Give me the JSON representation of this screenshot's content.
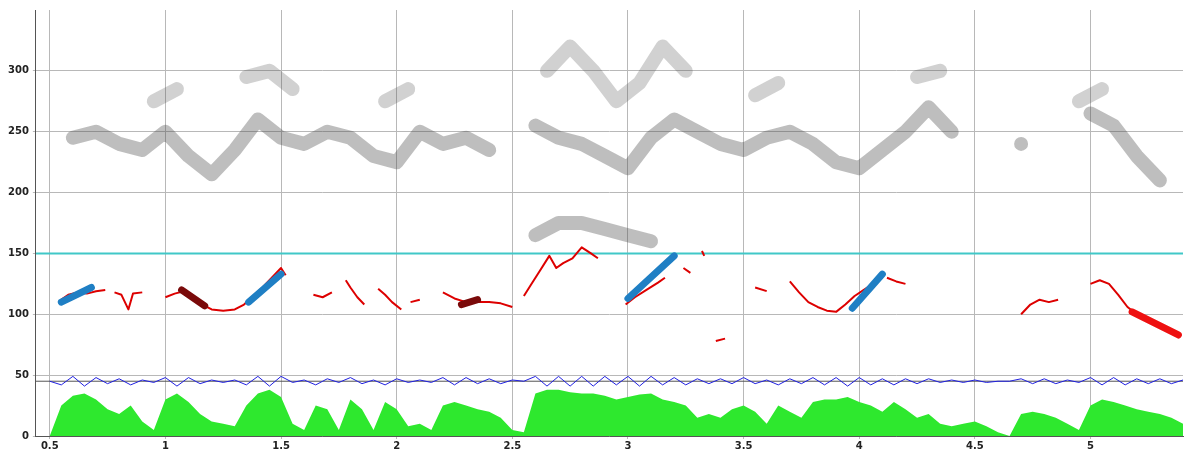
{
  "chart_data": {
    "type": "line",
    "xlim": [
      0.44,
      5.4
    ],
    "ylim": [
      0,
      350
    ],
    "xticks": [
      0.5,
      1,
      1.5,
      2,
      2.5,
      3,
      3.5,
      4,
      4.5,
      5
    ],
    "yticks": [
      0,
      50,
      100,
      150,
      200,
      250,
      300
    ],
    "grid": true,
    "series": [
      {
        "type": "segment",
        "color": "#1f7fc4",
        "line_style": "thick",
        "x": [
          0.55,
          0.68
        ],
        "values": [
          110,
          122
        ]
      },
      {
        "type": "segment",
        "color": "#1f7fc4",
        "line_style": "thick",
        "x": [
          1.36,
          1.5
        ],
        "values": [
          110,
          133
        ]
      },
      {
        "type": "segment",
        "color": "#1f7fc4",
        "line_style": "thick",
        "x": [
          3.0,
          3.2
        ],
        "values": [
          113,
          148
        ]
      },
      {
        "type": "segment",
        "color": "#1f7fc4",
        "line_style": "thick",
        "x": [
          3.97,
          4.1
        ],
        "values": [
          105,
          133
        ]
      },
      {
        "type": "segment",
        "color": "#7a0a0a",
        "line_style": "thick",
        "x": [
          1.07,
          1.17
        ],
        "values": [
          120,
          107
        ]
      },
      {
        "type": "segment",
        "color": "#7a0a0a",
        "line_style": "thick",
        "x": [
          2.28,
          2.35
        ],
        "values": [
          108,
          112
        ]
      },
      {
        "type": "segment",
        "color": "#ee1111",
        "line_style": "thick",
        "x": [
          5.18,
          5.38
        ],
        "values": [
          102,
          83
        ]
      },
      {
        "type": "line",
        "color": "#dd0000",
        "line_style": "thin",
        "x": [
          0.55,
          0.58,
          0.62,
          0.66,
          0.7,
          0.74,
          0.76,
          0.78,
          0.81,
          0.84,
          0.86,
          0.9,
          0.92,
          1.0,
          1.04,
          1.08,
          1.12,
          1.16,
          1.2,
          1.25,
          1.3,
          1.34,
          1.38,
          1.42,
          1.46,
          1.5,
          1.52,
          1.54,
          1.64,
          1.68,
          1.72,
          1.74,
          1.78,
          1.8,
          1.83,
          1.86,
          1.87,
          1.92,
          1.95,
          1.98,
          2.02,
          2.04,
          2.06,
          2.1,
          2.12,
          2.2,
          2.25,
          2.3,
          2.35,
          2.4,
          2.45,
          2.5,
          2.52,
          2.55,
          2.58,
          2.62,
          2.66,
          2.69,
          2.72,
          2.76,
          2.8,
          2.84,
          2.87,
          2.88,
          2.99,
          3.03,
          3.08,
          3.13,
          3.16,
          3.18,
          3.24,
          3.27,
          3.28,
          3.32,
          3.33,
          3.34,
          3.38,
          3.42,
          3.44,
          3.55,
          3.6,
          3.62,
          3.7,
          3.74,
          3.78,
          3.82,
          3.86,
          3.9,
          3.94,
          3.98,
          4.02,
          4.06,
          4.08,
          4.12,
          4.16,
          4.2,
          4.22,
          4.7,
          4.74,
          4.78,
          4.82,
          4.86,
          4.88,
          5.0,
          5.04,
          5.08,
          5.12,
          5.16,
          5.2
        ],
        "values": [
          112,
          116,
          118,
          117,
          119,
          120,
          null,
          118,
          116,
          104,
          117,
          118,
          null,
          114,
          117,
          119,
          112,
          108,
          104,
          103,
          104,
          108,
          115,
          122,
          130,
          138,
          132,
          null,
          116,
          114,
          118,
          null,
          128,
          122,
          114,
          108,
          null,
          121,
          116,
          110,
          104,
          null,
          110,
          112,
          null,
          118,
          113,
          110,
          110,
          110,
          109,
          106,
          null,
          115,
          124,
          136,
          148,
          138,
          142,
          146,
          155,
          150,
          146,
          null,
          108,
          114,
          120,
          126,
          130,
          null,
          138,
          134,
          null,
          152,
          148,
          null,
          78,
          80,
          null,
          122,
          119,
          null,
          127,
          118,
          110,
          106,
          103,
          102,
          108,
          115,
          120,
          125,
          null,
          130,
          127,
          125,
          null,
          100,
          108,
          112,
          110,
          112,
          null,
          125,
          128,
          125,
          116,
          106,
          100
        ]
      },
      {
        "type": "line",
        "color": "#40c8c8",
        "line_style": "thin",
        "x": [
          0.44,
          5.4
        ],
        "values": [
          150,
          150
        ]
      },
      {
        "type": "line",
        "color": "#2020e0",
        "line_style": "hair",
        "x": [
          0.5,
          0.55,
          0.6,
          0.65,
          0.7,
          0.75,
          0.8,
          0.85,
          0.9,
          0.95,
          1,
          1.05,
          1.1,
          1.15,
          1.2,
          1.25,
          1.3,
          1.35,
          1.4,
          1.45,
          1.5,
          1.55,
          1.6,
          1.65,
          1.7,
          1.75,
          1.8,
          1.85,
          1.9,
          1.95,
          2,
          2.05,
          2.1,
          2.15,
          2.2,
          2.25,
          2.3,
          2.35,
          2.4,
          2.45,
          2.5,
          2.55,
          2.6,
          2.65,
          2.7,
          2.75,
          2.8,
          2.85,
          2.9,
          2.95,
          3,
          3.05,
          3.1,
          3.15,
          3.2,
          3.25,
          3.3,
          3.35,
          3.4,
          3.45,
          3.5,
          3.55,
          3.6,
          3.65,
          3.7,
          3.75,
          3.8,
          3.85,
          3.9,
          3.95,
          4,
          4.05,
          4.1,
          4.15,
          4.2,
          4.25,
          4.3,
          4.35,
          4.4,
          4.45,
          4.5,
          4.55,
          4.6,
          4.65,
          4.7,
          4.75,
          4.8,
          4.85,
          4.9,
          4.95,
          5,
          5.05,
          5.1,
          5.15,
          5.2,
          5.25,
          5.3,
          5.35,
          5.4
        ],
        "values": [
          45,
          42,
          49,
          41,
          48,
          43,
          47,
          42,
          46,
          44,
          48,
          41,
          48,
          43,
          46,
          44,
          46,
          42,
          49,
          41,
          49,
          44,
          46,
          42,
          47,
          44,
          48,
          43,
          46,
          42,
          47,
          44,
          46,
          44,
          48,
          42,
          48,
          43,
          47,
          43,
          46,
          45,
          49,
          41,
          49,
          41,
          49,
          41,
          49,
          42,
          49,
          41,
          49,
          42,
          48,
          42,
          47,
          43,
          47,
          43,
          48,
          43,
          46,
          42,
          47,
          43,
          48,
          42,
          48,
          41,
          48,
          42,
          47,
          42,
          47,
          43,
          47,
          44,
          46,
          44,
          46,
          44,
          45,
          45,
          47,
          43,
          47,
          43,
          46,
          44,
          48,
          42,
          48,
          42,
          47,
          43,
          47,
          43,
          46
        ]
      },
      {
        "type": "line",
        "color": "#555555",
        "line_style": "hair",
        "x": [
          0.44,
          5.4
        ],
        "values": [
          45,
          45
        ]
      },
      {
        "type": "band",
        "color": "rgba(70,70,70,0.35)",
        "line_style": "blur",
        "x": [
          0.6,
          0.7,
          0.8,
          0.9,
          1.0,
          1.1,
          1.2,
          1.3,
          1.4,
          1.5,
          1.6,
          1.7,
          1.8,
          1.9,
          2.0,
          2.1,
          2.2,
          2.3,
          2.4,
          2.5,
          2.6,
          2.7,
          2.8,
          2.9,
          3.0,
          3.1,
          3.2,
          3.3,
          3.4,
          3.5,
          3.6,
          3.7,
          3.8,
          3.9,
          4.0,
          4.1,
          4.2,
          4.3,
          4.4,
          4.5,
          4.6,
          4.7,
          4.8,
          4.9,
          5.0,
          5.1,
          5.2,
          5.3
        ],
        "values": [
          245,
          250,
          240,
          235,
          250,
          230,
          215,
          235,
          260,
          245,
          240,
          250,
          245,
          230,
          225,
          250,
          240,
          245,
          235,
          null,
          255,
          245,
          240,
          230,
          220,
          245,
          260,
          250,
          240,
          235,
          245,
          250,
          240,
          225,
          220,
          235,
          250,
          270,
          250,
          null,
          null,
          240,
          null,
          null,
          265,
          255,
          230,
          210
        ]
      },
      {
        "type": "band",
        "color": "rgba(70,70,70,0.35)",
        "line_style": "blur",
        "x": [
          2.6,
          2.7,
          2.8,
          2.9,
          3.0,
          3.1
        ],
        "values": [
          165,
          175,
          175,
          170,
          165,
          160
        ]
      },
      {
        "type": "band",
        "color": "rgba(70,70,70,0.25)",
        "line_style": "blur",
        "x": [
          0.95,
          1.05,
          1.1,
          1.35,
          1.45,
          1.55,
          1.6,
          1.95,
          2.05,
          2.1,
          2.65,
          2.75,
          2.85,
          2.95,
          3.05,
          3.15,
          3.25,
          3.3,
          3.55,
          3.65,
          3.7,
          4.25,
          4.35,
          4.4,
          4.95,
          5.05
        ],
        "values": [
          275,
          285,
          null,
          295,
          300,
          285,
          null,
          275,
          285,
          null,
          300,
          320,
          300,
          275,
          290,
          320,
          300,
          null,
          280,
          290,
          null,
          295,
          300,
          null,
          275,
          285
        ]
      },
      {
        "type": "area",
        "color": "#2ee82e",
        "line_style": "thin",
        "x": [
          0.5,
          0.55,
          0.6,
          0.65,
          0.7,
          0.75,
          0.8,
          0.85,
          0.9,
          0.95,
          1,
          1.05,
          1.1,
          1.15,
          1.2,
          1.25,
          1.3,
          1.35,
          1.4,
          1.45,
          1.5,
          1.55,
          1.6,
          1.65,
          1.7,
          1.75,
          1.8,
          1.85,
          1.9,
          1.95,
          2,
          2.05,
          2.1,
          2.15,
          2.2,
          2.25,
          2.3,
          2.35,
          2.4,
          2.45,
          2.5,
          2.55,
          2.6,
          2.65,
          2.7,
          2.75,
          2.8,
          2.85,
          2.9,
          2.95,
          3,
          3.05,
          3.1,
          3.15,
          3.2,
          3.25,
          3.3,
          3.35,
          3.4,
          3.45,
          3.5,
          3.55,
          3.6,
          3.65,
          3.7,
          3.75,
          3.8,
          3.85,
          3.9,
          3.95,
          4,
          4.05,
          4.1,
          4.15,
          4.2,
          4.25,
          4.3,
          4.35,
          4.4,
          4.45,
          4.5,
          4.55,
          4.6,
          4.65,
          4.7,
          4.75,
          4.8,
          4.85,
          4.9,
          4.95,
          5,
          5.05,
          5.1,
          5.15,
          5.2,
          5.25,
          5.3,
          5.35,
          5.4
        ],
        "values": [
          0,
          25,
          33,
          35,
          30,
          22,
          18,
          25,
          12,
          5,
          30,
          35,
          28,
          18,
          12,
          10,
          8,
          25,
          35,
          38,
          32,
          10,
          5,
          25,
          22,
          5,
          30,
          22,
          5,
          28,
          22,
          8,
          10,
          5,
          25,
          28,
          25,
          22,
          20,
          15,
          5,
          3,
          35,
          38,
          38,
          36,
          35,
          35,
          33,
          30,
          32,
          34,
          35,
          30,
          28,
          25,
          15,
          18,
          15,
          22,
          25,
          20,
          10,
          25,
          20,
          15,
          28,
          30,
          30,
          32,
          28,
          25,
          20,
          28,
          22,
          15,
          18,
          10,
          8,
          10,
          12,
          8,
          3,
          0,
          18,
          20,
          18,
          15,
          10,
          5,
          25,
          30,
          28,
          25,
          22,
          20,
          18,
          15,
          10
        ]
      }
    ]
  }
}
